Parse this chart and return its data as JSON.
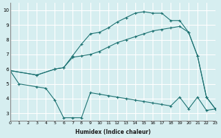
{
  "xlabel": "Humidex (Indice chaleur)",
  "bg_color": "#d6eef0",
  "grid_color": "#ffffff",
  "line_color": "#1a7070",
  "xlim": [
    0,
    23
  ],
  "ylim": [
    2.5,
    10.5
  ],
  "xticks": [
    0,
    1,
    2,
    3,
    4,
    5,
    6,
    7,
    8,
    9,
    10,
    11,
    12,
    13,
    14,
    15,
    16,
    17,
    18,
    19,
    20,
    21,
    22,
    23
  ],
  "yticks": [
    3,
    4,
    5,
    6,
    7,
    8,
    9,
    10
  ],
  "curve1_x": [
    0,
    1,
    3,
    4,
    5,
    6,
    7,
    8,
    9,
    10,
    11,
    12,
    13,
    14,
    15,
    16,
    17,
    18,
    19,
    20,
    21,
    22,
    23
  ],
  "curve1_y": [
    5.9,
    5.0,
    4.8,
    4.7,
    3.9,
    2.7,
    2.7,
    2.7,
    4.4,
    4.3,
    4.2,
    4.1,
    4.0,
    3.9,
    3.8,
    3.7,
    3.6,
    3.5,
    4.1,
    3.3,
    4.1,
    3.2,
    3.3
  ],
  "curve2_x": [
    0,
    3,
    5,
    6,
    7,
    8,
    9,
    10,
    11,
    12,
    13,
    14,
    15,
    16,
    17,
    18,
    19,
    20,
    21,
    22,
    23
  ],
  "curve2_y": [
    5.9,
    5.6,
    6.0,
    6.1,
    6.9,
    7.7,
    8.4,
    8.5,
    8.8,
    9.2,
    9.5,
    9.8,
    9.9,
    9.8,
    9.8,
    9.3,
    9.3,
    8.5,
    6.9,
    4.1,
    3.3
  ],
  "curve3_x": [
    0,
    3,
    5,
    6,
    7,
    8,
    9,
    10,
    11,
    12,
    13,
    14,
    15,
    16,
    17,
    18,
    19,
    20,
    21,
    22,
    23
  ],
  "curve3_y": [
    5.9,
    5.6,
    6.0,
    6.1,
    6.8,
    6.9,
    7.0,
    7.2,
    7.5,
    7.8,
    8.0,
    8.2,
    8.4,
    8.6,
    8.7,
    8.8,
    8.9,
    8.5,
    6.9,
    4.1,
    3.3
  ]
}
